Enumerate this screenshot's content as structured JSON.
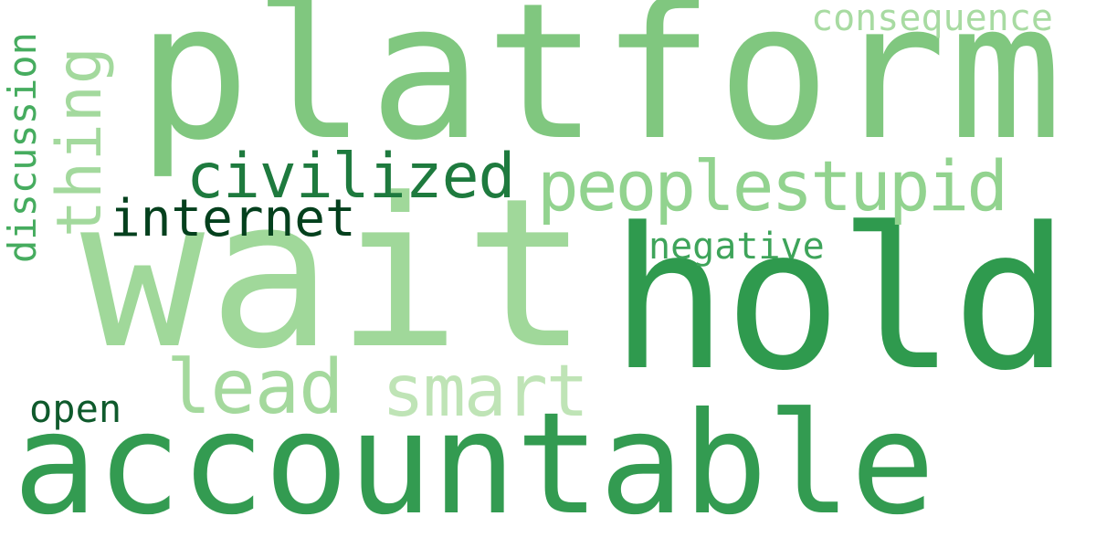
{
  "word_cloud": {
    "words": [
      {
        "text": "platform",
        "color": "#80c77f"
      },
      {
        "text": "wait",
        "color": "#a0d89a"
      },
      {
        "text": "hold",
        "color": "#2f9a4e"
      },
      {
        "text": "accountable",
        "color": "#339b51"
      },
      {
        "text": "peoplestupid",
        "color": "#92d38f"
      },
      {
        "text": "thing",
        "color": "#a3d99d"
      },
      {
        "text": "civilized",
        "color": "#1e7a3e"
      },
      {
        "text": "internet",
        "color": "#04401d"
      },
      {
        "text": "discussion",
        "color": "#46ac5f"
      },
      {
        "text": "negative",
        "color": "#3ea45a"
      },
      {
        "text": "consequence",
        "color": "#a8dba2"
      },
      {
        "text": "lead",
        "color": "#a4d99d"
      },
      {
        "text": "smart",
        "color": "#bfe4b6"
      },
      {
        "text": "open",
        "color": "#0f5a2c"
      }
    ]
  }
}
